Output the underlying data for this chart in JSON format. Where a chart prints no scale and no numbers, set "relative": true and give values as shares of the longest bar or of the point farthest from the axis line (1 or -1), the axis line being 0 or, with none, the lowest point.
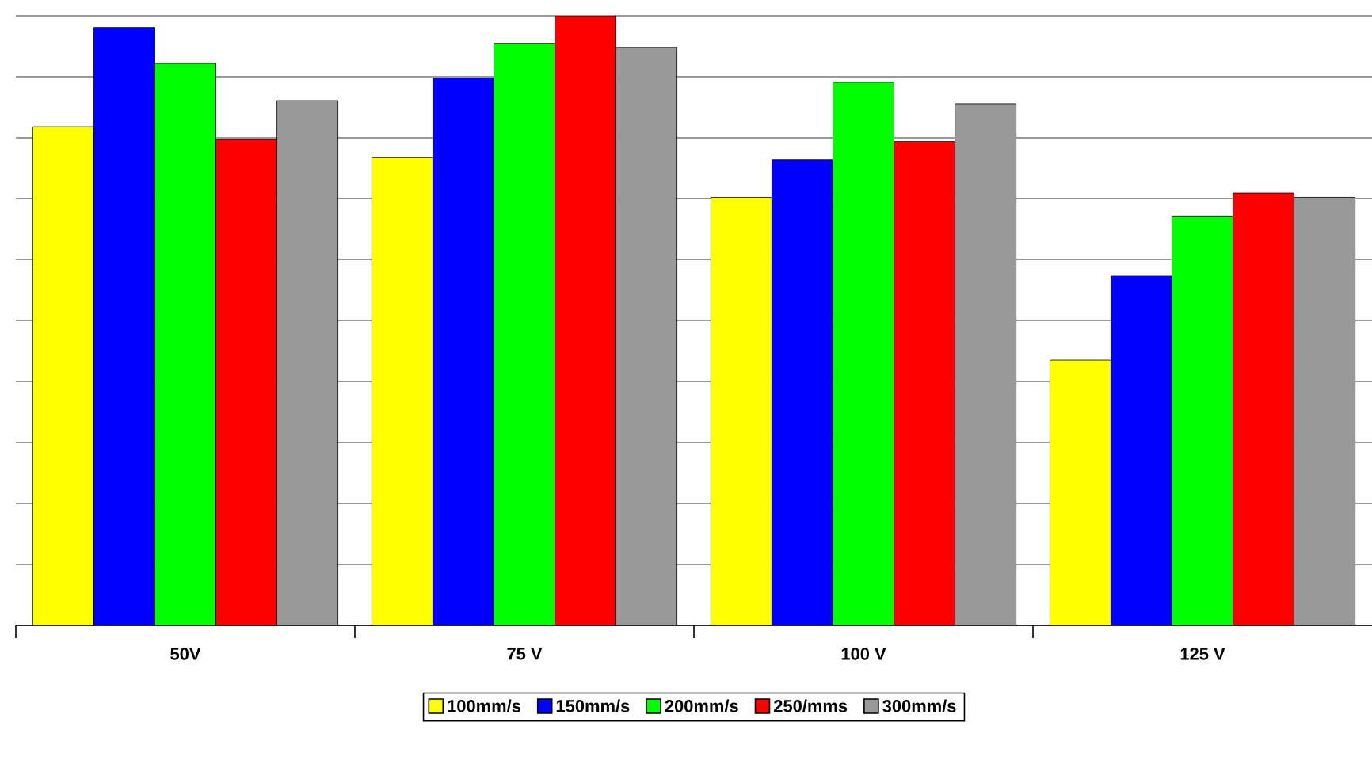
{
  "chart_data": {
    "type": "bar",
    "relative": true,
    "grid": "y",
    "legend": "bottom",
    "categories": [
      "50V",
      "75 V",
      "100 V",
      "125 V"
    ],
    "series": [
      {
        "name": "100mm/s",
        "color": "#ffff00",
        "values": [
          0.818,
          0.768,
          0.702,
          0.435
        ]
      },
      {
        "name": "150mm/s",
        "color": "#0000ff",
        "values": [
          0.981,
          0.898,
          0.764,
          0.574
        ]
      },
      {
        "name": "200mm/s",
        "color": "#00ff00",
        "values": [
          0.922,
          0.955,
          0.891,
          0.671
        ]
      },
      {
        "name": "250/mms",
        "color": "#ff0000",
        "values": [
          0.797,
          1.0,
          0.794,
          0.709
        ]
      },
      {
        "name": "300mm/s",
        "color": "#999999",
        "values": [
          0.861,
          0.948,
          0.856,
          0.702
        ]
      }
    ]
  }
}
